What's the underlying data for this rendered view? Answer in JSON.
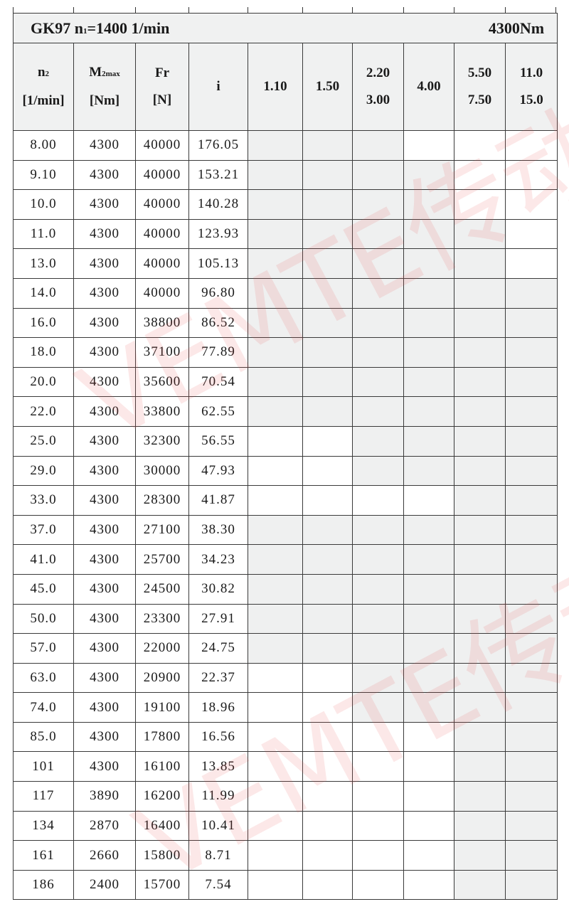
{
  "title": {
    "model": "GK97",
    "n1_label": "n",
    "n1_sub": "1",
    "n1_value": "=1400 1/min",
    "torque": "4300Nm"
  },
  "headers": {
    "n2": {
      "main": "n",
      "sub": "2",
      "unit": "[1/min]"
    },
    "m2max": {
      "main": "M",
      "sub": "2max",
      "unit": "[Nm]"
    },
    "fr": {
      "main": "Fr",
      "unit": "[N]"
    },
    "i": {
      "main": "i"
    },
    "power": [
      {
        "line1": "1.10",
        "line2": ""
      },
      {
        "line1": "1.50",
        "line2": ""
      },
      {
        "line1": "2.20",
        "line2": "3.00"
      },
      {
        "line1": "4.00",
        "line2": ""
      },
      {
        "line1": "5.50",
        "line2": "7.50"
      },
      {
        "line1": "11.0",
        "line2": "15.0"
      }
    ]
  },
  "shade_color": "#eff0f0",
  "watermark": "VEMTE传动",
  "rows": [
    {
      "n2": "8.00",
      "m2max": "4300",
      "fr": "40000",
      "i": "176.05",
      "avail": [
        1,
        1,
        1,
        0,
        0,
        0
      ]
    },
    {
      "n2": "9.10",
      "m2max": "4300",
      "fr": "40000",
      "i": "153.21",
      "avail": [
        1,
        1,
        1,
        1,
        0,
        0
      ]
    },
    {
      "n2": "10.0",
      "m2max": "4300",
      "fr": "40000",
      "i": "140.28",
      "avail": [
        1,
        1,
        1,
        1,
        0,
        0
      ]
    },
    {
      "n2": "11.0",
      "m2max": "4300",
      "fr": "40000",
      "i": "123.93",
      "avail": [
        1,
        1,
        1,
        1,
        1,
        0
      ]
    },
    {
      "n2": "13.0",
      "m2max": "4300",
      "fr": "40000",
      "i": "105.13",
      "avail": [
        1,
        1,
        1,
        1,
        1,
        0
      ]
    },
    {
      "n2": "14.0",
      "m2max": "4300",
      "fr": "40000",
      "i": "96.80",
      "avail": [
        1,
        1,
        1,
        1,
        1,
        1
      ]
    },
    {
      "n2": "16.0",
      "m2max": "4300",
      "fr": "38800",
      "i": "86.52",
      "avail": [
        1,
        1,
        1,
        1,
        1,
        1
      ]
    },
    {
      "n2": "18.0",
      "m2max": "4300",
      "fr": "37100",
      "i": "77.89",
      "avail": [
        1,
        1,
        1,
        1,
        1,
        1
      ]
    },
    {
      "n2": "20.0",
      "m2max": "4300",
      "fr": "35600",
      "i": "70.54",
      "avail": [
        1,
        1,
        1,
        1,
        1,
        1
      ]
    },
    {
      "n2": "22.0",
      "m2max": "4300",
      "fr": "33800",
      "i": "62.55",
      "avail": [
        1,
        1,
        1,
        1,
        1,
        1
      ]
    },
    {
      "n2": "25.0",
      "m2max": "4300",
      "fr": "32300",
      "i": "56.55",
      "avail": [
        0,
        0,
        1,
        1,
        1,
        1
      ]
    },
    {
      "n2": "29.0",
      "m2max": "4300",
      "fr": "30000",
      "i": "47.93",
      "avail": [
        0,
        0,
        1,
        1,
        1,
        1
      ]
    },
    {
      "n2": "33.0",
      "m2max": "4300",
      "fr": "28300",
      "i": "41.87",
      "avail": [
        0,
        0,
        0,
        0,
        1,
        1
      ]
    },
    {
      "n2": "37.0",
      "m2max": "4300",
      "fr": "27100",
      "i": "38.30",
      "avail": [
        1,
        1,
        1,
        1,
        1,
        1
      ]
    },
    {
      "n2": "41.0",
      "m2max": "4300",
      "fr": "25700",
      "i": "34.23",
      "avail": [
        1,
        1,
        1,
        1,
        1,
        1
      ]
    },
    {
      "n2": "45.0",
      "m2max": "4300",
      "fr": "24500",
      "i": "30.82",
      "avail": [
        1,
        1,
        1,
        1,
        1,
        1
      ]
    },
    {
      "n2": "50.0",
      "m2max": "4300",
      "fr": "23300",
      "i": "27.91",
      "avail": [
        1,
        1,
        1,
        1,
        1,
        1
      ]
    },
    {
      "n2": "57.0",
      "m2max": "4300",
      "fr": "22000",
      "i": "24.75",
      "avail": [
        1,
        1,
        1,
        1,
        1,
        1
      ]
    },
    {
      "n2": "63.0",
      "m2max": "4300",
      "fr": "20900",
      "i": "22.37",
      "avail": [
        0,
        0,
        1,
        1,
        1,
        1
      ]
    },
    {
      "n2": "74.0",
      "m2max": "4300",
      "fr": "19100",
      "i": "18.96",
      "avail": [
        0,
        0,
        1,
        1,
        1,
        1
      ]
    },
    {
      "n2": "85.0",
      "m2max": "4300",
      "fr": "17800",
      "i": "16.56",
      "avail": [
        0,
        0,
        0,
        0,
        1,
        1
      ]
    },
    {
      "n2": "101",
      "m2max": "4300",
      "fr": "16100",
      "i": "13.85",
      "avail": [
        0,
        0,
        0,
        0,
        1,
        1
      ]
    },
    {
      "n2": "117",
      "m2max": "3890",
      "fr": "16200",
      "i": "11.99",
      "avail": [
        0,
        0,
        0,
        0,
        1,
        1
      ]
    },
    {
      "n2": "134",
      "m2max": "2870",
      "fr": "16400",
      "i": "10.41",
      "avail": [
        0,
        0,
        0,
        0,
        1,
        1
      ]
    },
    {
      "n2": "161",
      "m2max": "2660",
      "fr": "15800",
      "i": "8.71",
      "avail": [
        0,
        0,
        0,
        0,
        1,
        1
      ]
    },
    {
      "n2": "186",
      "m2max": "2400",
      "fr": "15700",
      "i": "7.54",
      "avail": [
        0,
        0,
        0,
        0,
        1,
        1
      ]
    }
  ]
}
